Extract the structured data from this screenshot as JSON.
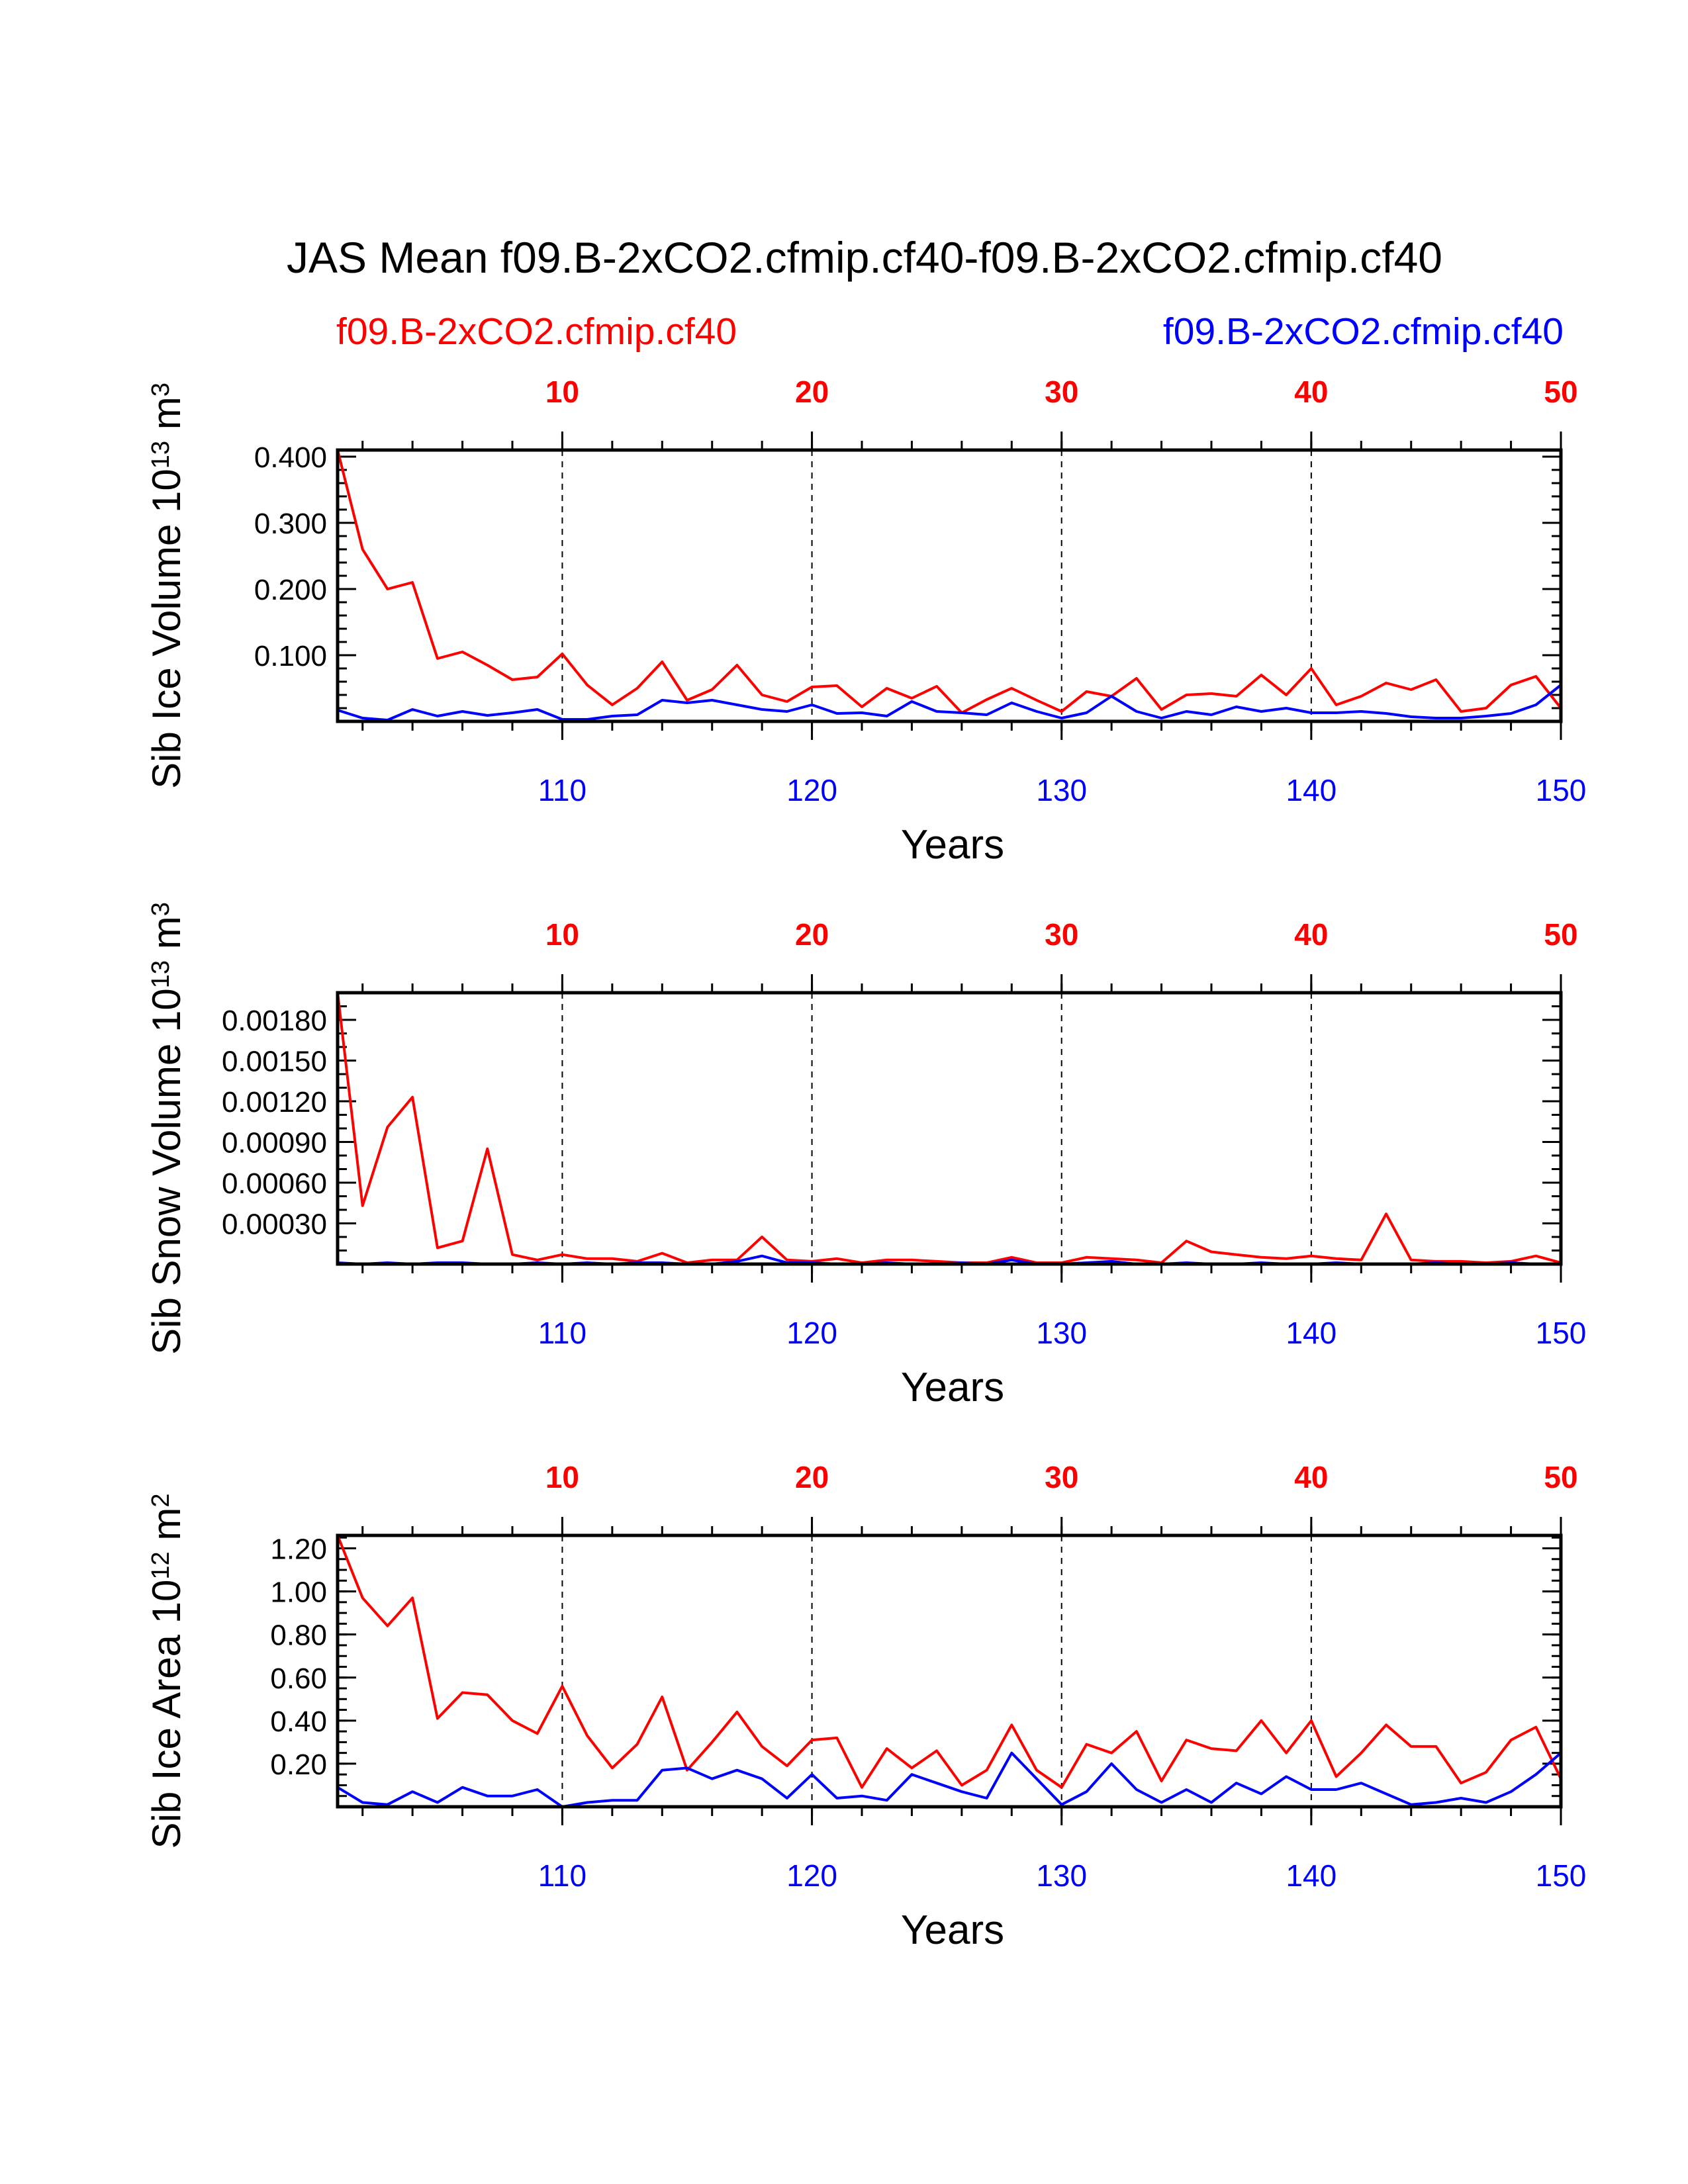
{
  "title": "JAS Mean f09.B-2xCO2.cfmip.cf40-f09.B-2xCO2.cfmip.cf40",
  "legend": {
    "left": {
      "label": "f09.B-2xCO2.cfmip.cf40",
      "color": "#ff0000"
    },
    "right": {
      "label": "f09.B-2xCO2.cfmip.cf40",
      "color": "#0000ff"
    }
  },
  "colors": {
    "red": "#ff0000",
    "blue": "#0000ff",
    "axis": "#000000"
  },
  "chart_data": [
    {
      "type": "line",
      "title": "",
      "ylabel": {
        "main": "Sib Ice Volume 10",
        "sup": "13",
        "unit": " m",
        "unit_sup": "3"
      },
      "xlabel": "Years",
      "xlim_bottom": [
        101,
        150
      ],
      "xlim_top": [
        1,
        50
      ],
      "ylim": [
        0.0,
        0.41
      ],
      "top_ticks": [
        10,
        20,
        30,
        40,
        50
      ],
      "bottom_ticks": [
        110,
        120,
        130,
        140,
        150
      ],
      "y_ticks": [
        0.1,
        0.2,
        0.3,
        0.4
      ],
      "y_tick_labels": [
        "0.100",
        "0.200",
        "0.300",
        "0.400"
      ],
      "y_minor_step": 0.02,
      "grid": "dashed vertical at decades",
      "series": [
        {
          "name": "f09.B-2xCO2.cfmip.cf40 (red, years 1-50)",
          "color": "#ff0000",
          "values": [
            0.41,
            0.26,
            0.2,
            0.21,
            0.095,
            0.105,
            0.085,
            0.063,
            0.067,
            0.102,
            0.055,
            0.025,
            0.05,
            0.09,
            0.032,
            0.048,
            0.085,
            0.04,
            0.03,
            0.052,
            0.054,
            0.022,
            0.05,
            0.035,
            0.053,
            0.013,
            0.033,
            0.05,
            0.032,
            0.015,
            0.045,
            0.038,
            0.065,
            0.018,
            0.04,
            0.042,
            0.038,
            0.07,
            0.04,
            0.08,
            0.025,
            0.038,
            0.058,
            0.048,
            0.063,
            0.015,
            0.02,
            0.055,
            0.068,
            0.02
          ]
        },
        {
          "name": "f09.B-2xCO2.cfmip.cf40 (blue, years 101-150)",
          "color": "#0000ff",
          "values": [
            0.017,
            0.005,
            0.002,
            0.018,
            0.008,
            0.015,
            0.009,
            0.013,
            0.018,
            0.003,
            0.003,
            0.008,
            0.01,
            0.032,
            0.028,
            0.032,
            0.025,
            0.018,
            0.015,
            0.025,
            0.012,
            0.013,
            0.008,
            0.03,
            0.015,
            0.013,
            0.01,
            0.028,
            0.015,
            0.005,
            0.013,
            0.038,
            0.015,
            0.005,
            0.015,
            0.01,
            0.022,
            0.015,
            0.02,
            0.013,
            0.013,
            0.015,
            0.012,
            0.007,
            0.005,
            0.005,
            0.008,
            0.012,
            0.025,
            0.055
          ]
        }
      ]
    },
    {
      "type": "line",
      "title": "",
      "ylabel": {
        "main": "Sib Snow Volume 10",
        "sup": "13",
        "unit": " m",
        "unit_sup": "3"
      },
      "xlabel": "Years",
      "xlim_bottom": [
        101,
        150
      ],
      "xlim_top": [
        1,
        50
      ],
      "ylim": [
        0.0,
        0.002
      ],
      "top_ticks": [
        10,
        20,
        30,
        40,
        50
      ],
      "bottom_ticks": [
        110,
        120,
        130,
        140,
        150
      ],
      "y_ticks": [
        0.0003,
        0.0006,
        0.0009,
        0.0012,
        0.0015,
        0.0018
      ],
      "y_tick_labels": [
        "0.00030",
        "0.00060",
        "0.00090",
        "0.00120",
        "0.00150",
        "0.00180"
      ],
      "y_minor_step": 0.0001,
      "grid": "dashed vertical at decades",
      "series": [
        {
          "name": "f09.B-2xCO2.cfmip.cf40 (red, years 1-50)",
          "color": "#ff0000",
          "values": [
            0.002,
            0.00043,
            0.00101,
            0.00123,
            0.00012,
            0.00017,
            0.00085,
            7e-05,
            3e-05,
            7e-05,
            4e-05,
            4e-05,
            2e-05,
            8e-05,
            1e-05,
            3e-05,
            3e-05,
            0.0002,
            3e-05,
            2e-05,
            4e-05,
            1e-05,
            3e-05,
            3e-05,
            2e-05,
            1e-05,
            1e-05,
            5e-05,
            1e-05,
            1e-05,
            5e-05,
            4e-05,
            3e-05,
            1e-05,
            0.00017,
            9e-05,
            7e-05,
            5e-05,
            4e-05,
            6e-05,
            4e-05,
            3e-05,
            0.00037,
            3e-05,
            2e-05,
            2e-05,
            1e-05,
            2e-05,
            6e-05,
            1e-05
          ]
        },
        {
          "name": "f09.B-2xCO2.cfmip.cf40 (blue, years 101-150)",
          "color": "#0000ff",
          "values": [
            1e-05,
            0.0,
            1e-05,
            0.0,
            1e-05,
            1e-05,
            0.0,
            0.0,
            1e-05,
            0.0,
            1e-05,
            0.0,
            1e-05,
            1e-05,
            0.0,
            0.0,
            2e-05,
            6e-05,
            1e-05,
            1e-05,
            0.0,
            0.0,
            1e-05,
            0.0,
            0.0,
            1e-05,
            0.0,
            3e-05,
            0.0,
            0.0,
            1e-05,
            2e-05,
            0.0,
            0.0,
            1e-05,
            0.0,
            0.0,
            1e-05,
            0.0,
            0.0,
            1e-05,
            0.0,
            0.0,
            0.0,
            1e-05,
            0.0,
            0.0,
            1e-05,
            0.0,
            0.0
          ]
        }
      ]
    },
    {
      "type": "line",
      "title": "",
      "ylabel": {
        "main": "Sib Ice Area 10",
        "sup": "12",
        "unit": " m",
        "unit_sup": "2"
      },
      "xlabel": "Years",
      "xlim_bottom": [
        101,
        150
      ],
      "xlim_top": [
        1,
        50
      ],
      "ylim": [
        0.0,
        1.26
      ],
      "top_ticks": [
        10,
        20,
        30,
        40,
        50
      ],
      "bottom_ticks": [
        110,
        120,
        130,
        140,
        150
      ],
      "y_ticks": [
        0.2,
        0.4,
        0.6,
        0.8,
        1.0,
        1.2
      ],
      "y_tick_labels": [
        "0.20",
        "0.40",
        "0.60",
        "0.80",
        "1.00",
        "1.20"
      ],
      "y_minor_step": 0.05,
      "grid": "dashed vertical at decades",
      "series": [
        {
          "name": "f09.B-2xCO2.cfmip.cf40 (red, years 1-50)",
          "color": "#ff0000",
          "values": [
            1.26,
            0.97,
            0.84,
            0.97,
            0.41,
            0.53,
            0.52,
            0.4,
            0.34,
            0.56,
            0.33,
            0.18,
            0.29,
            0.51,
            0.17,
            0.3,
            0.44,
            0.28,
            0.19,
            0.31,
            0.32,
            0.09,
            0.27,
            0.18,
            0.26,
            0.1,
            0.17,
            0.38,
            0.17,
            0.09,
            0.29,
            0.25,
            0.35,
            0.12,
            0.31,
            0.27,
            0.26,
            0.4,
            0.25,
            0.4,
            0.14,
            0.25,
            0.38,
            0.28,
            0.28,
            0.11,
            0.16,
            0.31,
            0.37,
            0.13
          ]
        },
        {
          "name": "f09.B-2xCO2.cfmip.cf40 (blue, years 101-150)",
          "color": "#0000ff",
          "values": [
            0.09,
            0.02,
            0.01,
            0.07,
            0.02,
            0.09,
            0.05,
            0.05,
            0.08,
            0.0,
            0.02,
            0.03,
            0.03,
            0.17,
            0.18,
            0.13,
            0.17,
            0.13,
            0.04,
            0.15,
            0.04,
            0.05,
            0.03,
            0.15,
            0.11,
            0.07,
            0.04,
            0.25,
            0.13,
            0.01,
            0.07,
            0.2,
            0.08,
            0.02,
            0.08,
            0.02,
            0.11,
            0.06,
            0.14,
            0.08,
            0.08,
            0.11,
            0.06,
            0.01,
            0.02,
            0.04,
            0.02,
            0.07,
            0.15,
            0.25
          ]
        }
      ]
    }
  ]
}
